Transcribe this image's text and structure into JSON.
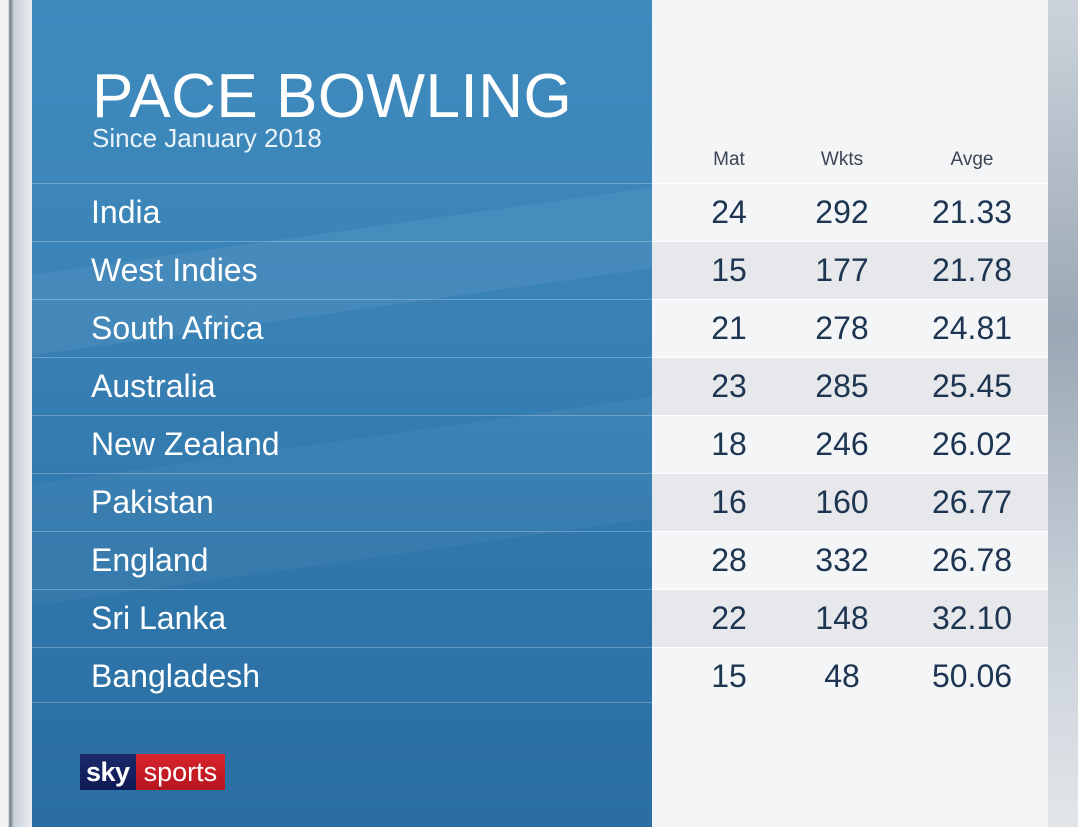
{
  "chart_data": {
    "type": "table",
    "title": "PACE BOWLING",
    "subtitle": "Since January 2018",
    "columns": [
      "Mat",
      "Wkts",
      "Avge"
    ],
    "rows": [
      {
        "team": "India",
        "mat": "24",
        "wkts": "292",
        "avge": "21.33"
      },
      {
        "team": "West Indies",
        "mat": "15",
        "wkts": "177",
        "avge": "21.78"
      },
      {
        "team": "South Africa",
        "mat": "21",
        "wkts": "278",
        "avge": "24.81"
      },
      {
        "team": "Australia",
        "mat": "23",
        "wkts": "285",
        "avge": "25.45"
      },
      {
        "team": "New Zealand",
        "mat": "18",
        "wkts": "246",
        "avge": "26.02"
      },
      {
        "team": "Pakistan",
        "mat": "16",
        "wkts": "160",
        "avge": "26.77"
      },
      {
        "team": "England",
        "mat": "28",
        "wkts": "332",
        "avge": "26.78"
      },
      {
        "team": "Sri Lanka",
        "mat": "22",
        "wkts": "148",
        "avge": "32.10"
      },
      {
        "team": "Bangladesh",
        "mat": "15",
        "wkts": "48",
        "avge": "50.06"
      }
    ]
  },
  "logo": {
    "part1": "sky",
    "part2": "sports"
  },
  "colors": {
    "panel_blue": "#3a83b7",
    "panel_white": "#f4f5f7",
    "stat_text": "#1d3551",
    "logo_blue": "#1c2a6b",
    "logo_red": "#d8242e"
  }
}
